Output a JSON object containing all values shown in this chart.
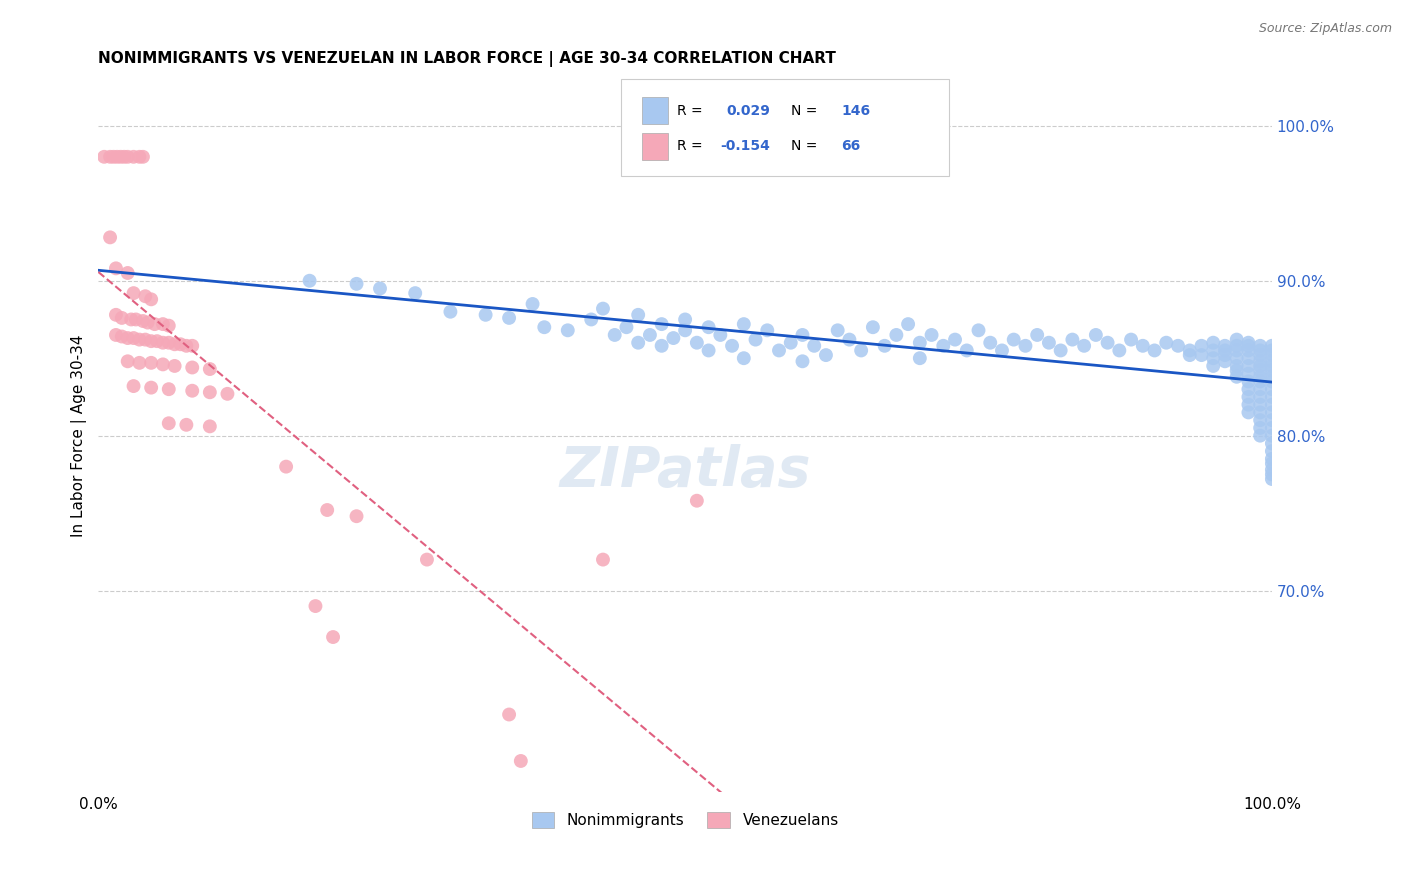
{
  "title": "NONIMMIGRANTS VS VENEZUELAN IN LABOR FORCE | AGE 30-34 CORRELATION CHART",
  "source": "Source: ZipAtlas.com",
  "ylabel": "In Labor Force | Age 30-34",
  "x_range": [
    0.0,
    1.0
  ],
  "y_range": [
    0.57,
    1.03
  ],
  "blue_R": 0.029,
  "blue_N": 146,
  "pink_R": -0.154,
  "pink_N": 66,
  "blue_color": "#a8c8f0",
  "pink_color": "#f5a8b8",
  "blue_line_color": "#1a56c4",
  "pink_line_color": "#e06080",
  "grid_color": "#cccccc",
  "right_label_color": "#3366cc",
  "blue_scatter": [
    [
      0.18,
      0.9
    ],
    [
      0.22,
      0.898
    ],
    [
      0.24,
      0.895
    ],
    [
      0.27,
      0.892
    ],
    [
      0.3,
      0.88
    ],
    [
      0.33,
      0.878
    ],
    [
      0.35,
      0.876
    ],
    [
      0.37,
      0.885
    ],
    [
      0.38,
      0.87
    ],
    [
      0.4,
      0.868
    ],
    [
      0.42,
      0.875
    ],
    [
      0.43,
      0.882
    ],
    [
      0.44,
      0.865
    ],
    [
      0.45,
      0.87
    ],
    [
      0.46,
      0.878
    ],
    [
      0.46,
      0.86
    ],
    [
      0.47,
      0.865
    ],
    [
      0.48,
      0.872
    ],
    [
      0.48,
      0.858
    ],
    [
      0.49,
      0.863
    ],
    [
      0.5,
      0.875
    ],
    [
      0.5,
      0.868
    ],
    [
      0.51,
      0.86
    ],
    [
      0.52,
      0.87
    ],
    [
      0.52,
      0.855
    ],
    [
      0.53,
      0.865
    ],
    [
      0.54,
      0.858
    ],
    [
      0.55,
      0.872
    ],
    [
      0.55,
      0.85
    ],
    [
      0.56,
      0.862
    ],
    [
      0.57,
      0.868
    ],
    [
      0.58,
      0.855
    ],
    [
      0.59,
      0.86
    ],
    [
      0.6,
      0.865
    ],
    [
      0.6,
      0.848
    ],
    [
      0.61,
      0.858
    ],
    [
      0.62,
      0.852
    ],
    [
      0.63,
      0.868
    ],
    [
      0.64,
      0.862
    ],
    [
      0.65,
      0.855
    ],
    [
      0.66,
      0.87
    ],
    [
      0.67,
      0.858
    ],
    [
      0.68,
      0.865
    ],
    [
      0.69,
      0.872
    ],
    [
      0.7,
      0.86
    ],
    [
      0.7,
      0.85
    ],
    [
      0.71,
      0.865
    ],
    [
      0.72,
      0.858
    ],
    [
      0.73,
      0.862
    ],
    [
      0.74,
      0.855
    ],
    [
      0.75,
      0.868
    ],
    [
      0.76,
      0.86
    ],
    [
      0.77,
      0.855
    ],
    [
      0.78,
      0.862
    ],
    [
      0.79,
      0.858
    ],
    [
      0.8,
      0.865
    ],
    [
      0.81,
      0.86
    ],
    [
      0.82,
      0.855
    ],
    [
      0.83,
      0.862
    ],
    [
      0.84,
      0.858
    ],
    [
      0.85,
      0.865
    ],
    [
      0.86,
      0.86
    ],
    [
      0.87,
      0.855
    ],
    [
      0.88,
      0.862
    ],
    [
      0.89,
      0.858
    ],
    [
      0.9,
      0.855
    ],
    [
      0.91,
      0.86
    ],
    [
      0.92,
      0.858
    ],
    [
      0.93,
      0.855
    ],
    [
      0.93,
      0.852
    ],
    [
      0.94,
      0.858
    ],
    [
      0.94,
      0.852
    ],
    [
      0.95,
      0.86
    ],
    [
      0.95,
      0.855
    ],
    [
      0.95,
      0.85
    ],
    [
      0.95,
      0.845
    ],
    [
      0.96,
      0.858
    ],
    [
      0.96,
      0.855
    ],
    [
      0.96,
      0.852
    ],
    [
      0.96,
      0.848
    ],
    [
      0.97,
      0.862
    ],
    [
      0.97,
      0.858
    ],
    [
      0.97,
      0.855
    ],
    [
      0.97,
      0.85
    ],
    [
      0.97,
      0.845
    ],
    [
      0.97,
      0.842
    ],
    [
      0.97,
      0.838
    ],
    [
      0.98,
      0.86
    ],
    [
      0.98,
      0.858
    ],
    [
      0.98,
      0.855
    ],
    [
      0.98,
      0.85
    ],
    [
      0.98,
      0.845
    ],
    [
      0.98,
      0.84
    ],
    [
      0.98,
      0.835
    ],
    [
      0.98,
      0.83
    ],
    [
      0.98,
      0.825
    ],
    [
      0.98,
      0.82
    ],
    [
      0.98,
      0.815
    ],
    [
      0.99,
      0.858
    ],
    [
      0.99,
      0.855
    ],
    [
      0.99,
      0.852
    ],
    [
      0.99,
      0.848
    ],
    [
      0.99,
      0.845
    ],
    [
      0.99,
      0.842
    ],
    [
      0.99,
      0.838
    ],
    [
      0.99,
      0.835
    ],
    [
      0.99,
      0.83
    ],
    [
      0.99,
      0.825
    ],
    [
      0.99,
      0.82
    ],
    [
      0.99,
      0.815
    ],
    [
      0.99,
      0.81
    ],
    [
      0.99,
      0.805
    ],
    [
      0.99,
      0.8
    ],
    [
      1.0,
      0.858
    ],
    [
      1.0,
      0.855
    ],
    [
      1.0,
      0.852
    ],
    [
      1.0,
      0.848
    ],
    [
      1.0,
      0.845
    ],
    [
      1.0,
      0.842
    ],
    [
      1.0,
      0.838
    ],
    [
      1.0,
      0.835
    ],
    [
      1.0,
      0.83
    ],
    [
      1.0,
      0.825
    ],
    [
      1.0,
      0.82
    ],
    [
      1.0,
      0.815
    ],
    [
      1.0,
      0.81
    ],
    [
      1.0,
      0.805
    ],
    [
      1.0,
      0.8
    ],
    [
      1.0,
      0.795
    ],
    [
      1.0,
      0.79
    ],
    [
      1.0,
      0.785
    ],
    [
      1.0,
      0.782
    ],
    [
      1.0,
      0.778
    ],
    [
      1.0,
      0.775
    ],
    [
      1.0,
      0.772
    ]
  ],
  "pink_scatter": [
    [
      0.005,
      0.98
    ],
    [
      0.01,
      0.98
    ],
    [
      0.013,
      0.98
    ],
    [
      0.016,
      0.98
    ],
    [
      0.019,
      0.98
    ],
    [
      0.022,
      0.98
    ],
    [
      0.025,
      0.98
    ],
    [
      0.03,
      0.98
    ],
    [
      0.035,
      0.98
    ],
    [
      0.038,
      0.98
    ],
    [
      0.01,
      0.928
    ],
    [
      0.015,
      0.908
    ],
    [
      0.025,
      0.905
    ],
    [
      0.03,
      0.892
    ],
    [
      0.04,
      0.89
    ],
    [
      0.045,
      0.888
    ],
    [
      0.015,
      0.878
    ],
    [
      0.02,
      0.876
    ],
    [
      0.028,
      0.875
    ],
    [
      0.032,
      0.875
    ],
    [
      0.038,
      0.874
    ],
    [
      0.042,
      0.873
    ],
    [
      0.048,
      0.872
    ],
    [
      0.055,
      0.872
    ],
    [
      0.06,
      0.871
    ],
    [
      0.015,
      0.865
    ],
    [
      0.02,
      0.864
    ],
    [
      0.025,
      0.863
    ],
    [
      0.03,
      0.863
    ],
    [
      0.035,
      0.862
    ],
    [
      0.04,
      0.862
    ],
    [
      0.045,
      0.861
    ],
    [
      0.05,
      0.861
    ],
    [
      0.055,
      0.86
    ],
    [
      0.06,
      0.86
    ],
    [
      0.065,
      0.859
    ],
    [
      0.07,
      0.859
    ],
    [
      0.075,
      0.858
    ],
    [
      0.08,
      0.858
    ],
    [
      0.025,
      0.848
    ],
    [
      0.035,
      0.847
    ],
    [
      0.045,
      0.847
    ],
    [
      0.055,
      0.846
    ],
    [
      0.065,
      0.845
    ],
    [
      0.08,
      0.844
    ],
    [
      0.095,
      0.843
    ],
    [
      0.03,
      0.832
    ],
    [
      0.045,
      0.831
    ],
    [
      0.06,
      0.83
    ],
    [
      0.08,
      0.829
    ],
    [
      0.095,
      0.828
    ],
    [
      0.11,
      0.827
    ],
    [
      0.06,
      0.808
    ],
    [
      0.075,
      0.807
    ],
    [
      0.095,
      0.806
    ],
    [
      0.16,
      0.78
    ],
    [
      0.195,
      0.752
    ],
    [
      0.22,
      0.748
    ],
    [
      0.28,
      0.72
    ],
    [
      0.43,
      0.72
    ],
    [
      0.51,
      0.758
    ],
    [
      0.185,
      0.69
    ],
    [
      0.2,
      0.67
    ],
    [
      0.35,
      0.62
    ],
    [
      0.36,
      0.59
    ]
  ],
  "watermark": "ZIPatlas",
  "legend_nonimmigrants": "Nonimmigrants",
  "legend_venezuelans": "Venezuelans"
}
